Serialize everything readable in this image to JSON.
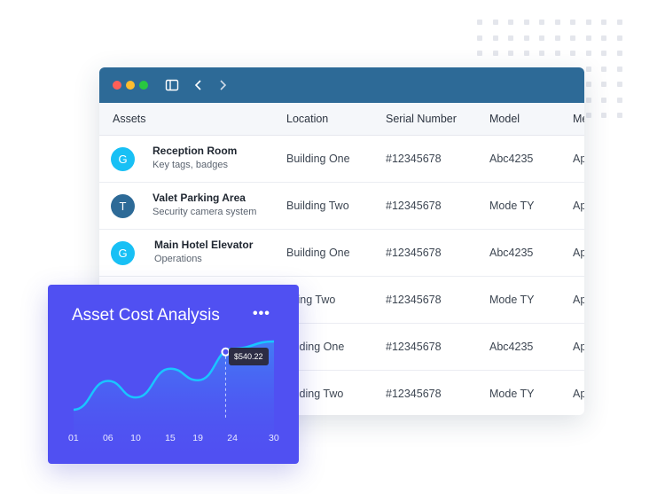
{
  "window": {
    "titlebar_color": "#2d6a97",
    "traffic_lights": [
      "#ff5f57",
      "#febc2e",
      "#28c840"
    ],
    "icons": [
      "sidebar-toggle-icon",
      "chevron-left-icon",
      "chevron-right-icon"
    ]
  },
  "table": {
    "headers": [
      "Assets",
      "Location",
      "Serial Number",
      "Model",
      "Me"
    ],
    "rows": [
      {
        "avatar": "G",
        "avatar_color": "#18c0f5",
        "title": "Reception Room",
        "subtitle": "Key tags, badges",
        "location": "Building One",
        "serial": "#12345678",
        "model": "Abc4235",
        "extra": "Ap"
      },
      {
        "avatar": "T",
        "avatar_color": "#2d6a97",
        "title": "Valet Parking Area",
        "subtitle": "Security camera system",
        "location": "Building Two",
        "serial": "#12345678",
        "model": "Mode TY",
        "extra": "Ap"
      },
      {
        "avatar": "G",
        "avatar_color": "#18c0f5",
        "title": "Main Hotel Elevator",
        "subtitle": "Operations",
        "location": "Building One",
        "serial": "#12345678",
        "model": "Abc4235",
        "extra": "Ap"
      },
      {
        "location": "ilding Two",
        "serial": "#12345678",
        "model": "Mode TY",
        "extra": "Ap"
      },
      {
        "location": "ilding One",
        "serial": "#12345678",
        "model": "Abc4235",
        "extra": "Ap"
      },
      {
        "location": "ilding Two",
        "serial": "#12345678",
        "model": "Mode TY",
        "extra": "Ap"
      }
    ]
  },
  "card": {
    "title": "Asset Cost Analysis",
    "menu_icon": "more-dots-icon",
    "background": "#5050f2",
    "line_color": "#19c6ff",
    "tooltip": "$540.22"
  },
  "chart_data": {
    "type": "area",
    "x": [
      1,
      6,
      10,
      15,
      19,
      24,
      30
    ],
    "x_tick_labels": [
      "01",
      "06",
      "10",
      "15",
      "19",
      "24",
      "30"
    ],
    "y": [
      0.05,
      0.45,
      0.22,
      0.62,
      0.46,
      0.9,
      1.0
    ],
    "highlighted_point": {
      "x": 23,
      "label": "$540.22"
    },
    "title": "Asset Cost Analysis",
    "grid": false
  }
}
